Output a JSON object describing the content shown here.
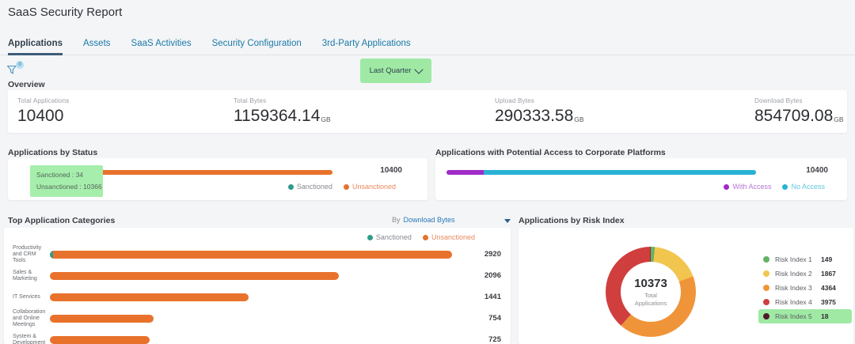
{
  "page_title": "SaaS Security Report",
  "tabs": [
    {
      "label": "Applications",
      "active": true
    },
    {
      "label": "Assets",
      "active": false
    },
    {
      "label": "SaaS Activities",
      "active": false
    },
    {
      "label": "Security Configuration",
      "active": false
    },
    {
      "label": "3rd-Party Applications",
      "active": false
    }
  ],
  "toolbar": {
    "filter_badge": "0",
    "time_range_value": "Last Quarter",
    "highlight_color": "#9fe9a4"
  },
  "overview": {
    "section_title": "Overview",
    "metrics": [
      {
        "label": "Total Applications",
        "value": "10400",
        "unit": ""
      },
      {
        "label": "Total Bytes",
        "value": "1159364.14",
        "unit": "GB"
      },
      {
        "label": "Upload Bytes",
        "value": "290333.58",
        "unit": "GB"
      },
      {
        "label": "Download Bytes",
        "value": "854709.08",
        "unit": "GB"
      }
    ]
  },
  "status_chart": {
    "title": "Applications by Status",
    "total_label": "10400",
    "tooltip_lines": [
      "Sanctioned : 34",
      "Unsanctioned : 10366"
    ],
    "legend": [
      {
        "label": "Sanctioned",
        "color": "#2e9c89",
        "text_color": "#85898f"
      },
      {
        "label": "Unsanctioned",
        "color": "#e8722c",
        "text_color": "#e98a60"
      }
    ]
  },
  "access_chart": {
    "title": "Applications with Potential Access to Corporate Platforms",
    "total_label": "10400",
    "legend": [
      {
        "label": "With Access",
        "color": "#a02bc8",
        "text_color": "#b678d3"
      },
      {
        "label": "No Access",
        "color": "#29b2d4",
        "text_color": "#63c6de"
      }
    ]
  },
  "categories_chart": {
    "title": "Top Application Categories",
    "sort_prefix": "By",
    "sort_value": "Download Bytes",
    "legend": [
      {
        "label": "Sanctioned",
        "color": "#2e9c89",
        "text_color": "#85898f"
      },
      {
        "label": "Unsanctioned",
        "color": "#e8722c",
        "text_color": "#e98a60"
      }
    ]
  },
  "risk_chart": {
    "title": "Applications by Risk Index",
    "center_value": "10373",
    "center_label": "Total Applications"
  },
  "chart_data": [
    {
      "id": "status",
      "type": "bar",
      "orientation": "horizontal",
      "stacked": true,
      "title": "Applications by Status",
      "series": [
        {
          "name": "Sanctioned",
          "value": 34,
          "color": "#2e9c89"
        },
        {
          "name": "Unsanctioned",
          "value": 10366,
          "color": "#e8722c"
        }
      ],
      "total": 10400,
      "legend_position": "bottom-right"
    },
    {
      "id": "access",
      "type": "bar",
      "orientation": "horizontal",
      "stacked": true,
      "title": "Applications with Potential Access to Corporate Platforms",
      "series": [
        {
          "name": "With Access",
          "value_estimated_pct": 12,
          "color": "#a02bc8"
        },
        {
          "name": "No Access",
          "value_estimated_pct": 88,
          "color": "#29b2d4"
        }
      ],
      "total": 10400,
      "legend_position": "bottom-right"
    },
    {
      "id": "categories",
      "type": "bar",
      "orientation": "horizontal",
      "title": "Top Application Categories",
      "categories": [
        "Productivity and CRM Tools",
        "Sales & Marketing",
        "IT Services",
        "Collaboration and Online Meetings",
        "System & Development"
      ],
      "values": [
        2920,
        2096,
        1441,
        754,
        725
      ],
      "bar_color": "#e8722c",
      "sanctioned_color": "#2e9c89",
      "legend_position": "top-right"
    },
    {
      "id": "risk",
      "type": "pie",
      "title": "Applications by Risk Index",
      "labels": [
        "Risk Index 1",
        "Risk Index 2",
        "Risk Index 3",
        "Risk Index 4",
        "Risk Index 5"
      ],
      "values": [
        149,
        1867,
        4364,
        3975,
        18
      ],
      "colors": [
        "#64b364",
        "#f2c54f",
        "#f0943a",
        "#d03e3e",
        "#4f1b2b"
      ],
      "total": 10373,
      "highlighted": "Risk Index 5",
      "legend_position": "right"
    }
  ]
}
